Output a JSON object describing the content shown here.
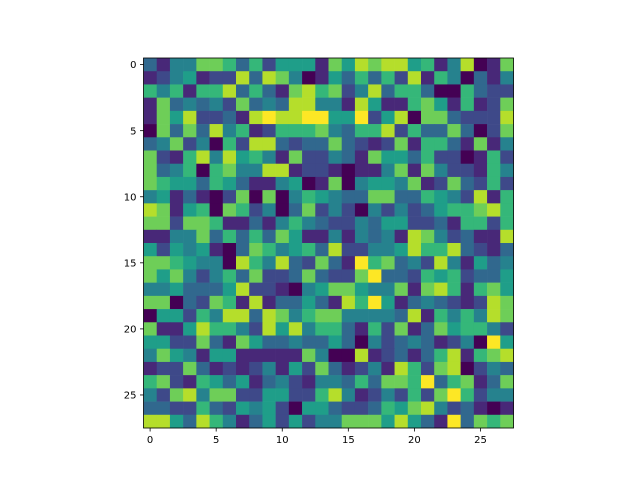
{
  "chart_data": {
    "type": "heatmap",
    "title": "",
    "xlabel": "",
    "ylabel": "",
    "colormap": "viridis",
    "colors": [
      "#440154",
      "#482878",
      "#3e4989",
      "#31688e",
      "#26828e",
      "#1f9e89",
      "#35b779",
      "#6ece58",
      "#b5de2b",
      "#fde725"
    ],
    "vmin": 0,
    "vmax": 9,
    "rows": 28,
    "cols": 28,
    "xticks": [
      0,
      5,
      10,
      15,
      20,
      25
    ],
    "yticks": [
      0,
      5,
      10,
      15,
      20,
      25
    ],
    "xlim": [
      -0.5,
      27.5
    ],
    "ylim": [
      27.5,
      -0.5
    ],
    "values": [
      [
        3,
        1,
        4,
        4,
        7,
        7,
        6,
        3,
        6,
        2,
        5,
        5,
        5,
        1,
        7,
        5,
        8,
        7,
        8,
        8,
        5,
        6,
        1,
        4,
        8,
        0,
        1,
        7
      ],
      [
        1,
        2,
        4,
        5,
        1,
        2,
        2,
        8,
        3,
        8,
        7,
        4,
        0,
        1,
        5,
        3,
        6,
        3,
        6,
        2,
        8,
        1,
        6,
        4,
        0,
        3,
        1,
        4
      ],
      [
        6,
        4,
        6,
        1,
        6,
        6,
        8,
        3,
        6,
        3,
        1,
        7,
        8,
        6,
        7,
        2,
        4,
        8,
        3,
        6,
        6,
        3,
        0,
        0,
        6,
        3,
        2,
        2
      ],
      [
        1,
        7,
        3,
        4,
        3,
        4,
        2,
        7,
        3,
        4,
        3,
        8,
        8,
        4,
        4,
        1,
        8,
        5,
        1,
        1,
        6,
        7,
        5,
        1,
        6,
        1,
        2,
        7
      ],
      [
        1,
        7,
        5,
        8,
        2,
        2,
        3,
        1,
        8,
        9,
        8,
        8,
        9,
        9,
        5,
        5,
        9,
        2,
        5,
        8,
        0,
        7,
        7,
        3,
        2,
        2,
        2,
        8
      ],
      [
        0,
        7,
        3,
        7,
        3,
        8,
        4,
        6,
        1,
        2,
        6,
        6,
        6,
        7,
        4,
        3,
        6,
        6,
        8,
        2,
        6,
        3,
        3,
        7,
        3,
        0,
        2,
        7
      ],
      [
        3,
        4,
        7,
        2,
        4,
        0,
        6,
        2,
        8,
        8,
        3,
        2,
        3,
        3,
        7,
        3,
        2,
        1,
        2,
        7,
        1,
        6,
        6,
        3,
        1,
        7,
        1,
        4
      ],
      [
        7,
        2,
        1,
        6,
        8,
        4,
        8,
        5,
        6,
        4,
        1,
        7,
        2,
        2,
        4,
        3,
        1,
        7,
        5,
        5,
        3,
        6,
        2,
        2,
        0,
        1,
        6,
        2
      ],
      [
        7,
        3,
        4,
        6,
        0,
        6,
        7,
        4,
        4,
        8,
        8,
        1,
        2,
        2,
        1,
        0,
        1,
        1,
        4,
        7,
        1,
        7,
        4,
        2,
        2,
        1,
        6,
        4
      ],
      [
        7,
        6,
        5,
        5,
        3,
        6,
        5,
        3,
        1,
        1,
        4,
        5,
        0,
        1,
        7,
        0,
        4,
        5,
        5,
        4,
        7,
        1,
        2,
        7,
        3,
        2,
        6,
        2
      ],
      [
        4,
        5,
        1,
        3,
        1,
        0,
        2,
        7,
        0,
        7,
        0,
        4,
        6,
        5,
        4,
        3,
        3,
        7,
        7,
        3,
        3,
        6,
        5,
        4,
        2,
        8,
        1,
        6
      ],
      [
        8,
        7,
        1,
        5,
        6,
        0,
        7,
        6,
        2,
        4,
        0,
        3,
        7,
        2,
        4,
        2,
        0,
        4,
        2,
        4,
        2,
        3,
        5,
        6,
        6,
        7,
        8,
        6
      ],
      [
        7,
        7,
        2,
        7,
        7,
        6,
        1,
        1,
        3,
        1,
        4,
        6,
        4,
        3,
        2,
        2,
        4,
        3,
        5,
        5,
        2,
        2,
        3,
        1,
        6,
        6,
        2,
        6
      ],
      [
        1,
        1,
        4,
        4,
        7,
        3,
        6,
        3,
        6,
        3,
        7,
        5,
        1,
        1,
        4,
        1,
        4,
        3,
        4,
        1,
        8,
        7,
        4,
        2,
        3,
        1,
        1,
        8
      ],
      [
        5,
        2,
        5,
        4,
        5,
        1,
        0,
        3,
        7,
        6,
        4,
        5,
        6,
        3,
        8,
        2,
        2,
        4,
        4,
        5,
        8,
        6,
        6,
        8,
        3,
        2,
        1,
        3
      ],
      [
        7,
        7,
        6,
        5,
        4,
        4,
        0,
        8,
        6,
        4,
        8,
        3,
        2,
        7,
        3,
        1,
        9,
        6,
        7,
        3,
        4,
        2,
        8,
        4,
        1,
        5,
        3,
        4
      ],
      [
        7,
        5,
        7,
        4,
        2,
        4,
        6,
        3,
        7,
        2,
        2,
        3,
        7,
        3,
        2,
        2,
        7,
        9,
        3,
        3,
        2,
        6,
        5,
        6,
        2,
        3,
        3,
        5
      ],
      [
        4,
        4,
        5,
        3,
        3,
        3,
        5,
        8,
        2,
        2,
        1,
        0,
        4,
        5,
        7,
        7,
        5,
        4,
        4,
        7,
        1,
        7,
        8,
        6,
        1,
        6,
        7,
        5
      ],
      [
        7,
        7,
        0,
        3,
        2,
        7,
        6,
        1,
        8,
        1,
        3,
        3,
        5,
        3,
        1,
        8,
        6,
        9,
        5,
        1,
        3,
        4,
        3,
        2,
        1,
        2,
        8,
        7
      ],
      [
        0,
        5,
        5,
        2,
        6,
        4,
        8,
        8,
        3,
        8,
        7,
        4,
        6,
        7,
        7,
        4,
        4,
        4,
        4,
        3,
        8,
        1,
        6,
        4,
        6,
        4,
        8,
        7
      ],
      [
        7,
        1,
        1,
        5,
        8,
        6,
        6,
        4,
        2,
        8,
        5,
        8,
        4,
        6,
        6,
        3,
        1,
        6,
        2,
        7,
        1,
        3,
        7,
        5,
        6,
        6,
        4,
        2
      ],
      [
        5,
        5,
        2,
        2,
        7,
        3,
        1,
        7,
        5,
        3,
        3,
        4,
        3,
        3,
        5,
        3,
        0,
        4,
        2,
        3,
        4,
        3,
        1,
        2,
        4,
        0,
        9,
        5
      ],
      [
        4,
        7,
        5,
        4,
        1,
        5,
        5,
        1,
        1,
        1,
        1,
        1,
        7,
        4,
        0,
        0,
        8,
        1,
        2,
        3,
        1,
        3,
        6,
        8,
        1,
        6,
        7,
        8
      ],
      [
        1,
        2,
        2,
        7,
        3,
        1,
        2,
        1,
        2,
        4,
        1,
        5,
        2,
        7,
        3,
        1,
        2,
        4,
        1,
        8,
        6,
        2,
        7,
        8,
        0,
        2,
        4,
        3
      ],
      [
        6,
        7,
        2,
        1,
        6,
        5,
        3,
        5,
        1,
        3,
        4,
        2,
        1,
        4,
        4,
        3,
        6,
        3,
        7,
        7,
        6,
        9,
        3,
        6,
        7,
        1,
        3,
        7
      ],
      [
        4,
        2,
        7,
        8,
        4,
        7,
        7,
        2,
        2,
        5,
        5,
        2,
        2,
        6,
        8,
        4,
        1,
        2,
        4,
        2,
        6,
        2,
        7,
        9,
        6,
        2,
        4,
        4
      ],
      [
        3,
        3,
        2,
        2,
        6,
        3,
        2,
        5,
        4,
        5,
        2,
        0,
        5,
        5,
        3,
        2,
        2,
        3,
        6,
        5,
        7,
        8,
        4,
        2,
        3,
        1,
        0,
        1
      ],
      [
        8,
        8,
        5,
        3,
        8,
        6,
        4,
        1,
        3,
        5,
        2,
        5,
        2,
        4,
        4,
        7,
        7,
        7,
        5,
        8,
        5,
        3,
        1,
        9,
        3,
        7,
        6,
        7
      ]
    ]
  }
}
